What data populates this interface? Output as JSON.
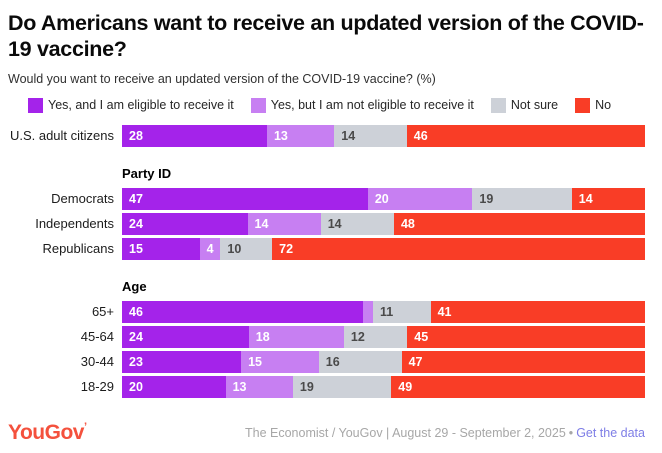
{
  "title": "Do Americans want to receive an updated version of the COVID-19 vaccine?",
  "subtitle": "Would you want to receive an updated version of the COVID-19 vaccine? (%)",
  "colors": {
    "yes_eligible": "#a423ea",
    "yes_not_eligible": "#c77ff2",
    "not_sure": "#cdd1d8",
    "no": "#f93d26",
    "label_on_light": "#4a4a4a",
    "label_on_dark": "#ffffff",
    "logo": "#f4513d",
    "link": "#7e7ee6",
    "footer_text": "#a7a7a7"
  },
  "legend": [
    "Yes, and I am eligible to receive it",
    "Yes, but I am not eligible to receive it",
    "Not sure",
    "No"
  ],
  "chart_data": {
    "type": "bar",
    "stacked": true,
    "orientation": "horizontal",
    "unit": "%",
    "xlim": [
      0,
      100
    ],
    "grid": false,
    "legend_position": "top",
    "series": [
      {
        "name": "Yes, and I am eligible to receive it",
        "color": "#a423ea",
        "label_color": "#ffffff"
      },
      {
        "name": "Yes, but I am not eligible to receive it",
        "color": "#c77ff2",
        "label_color": "#ffffff"
      },
      {
        "name": "Not sure",
        "color": "#cdd1d8",
        "label_color": "#4a4a4a"
      },
      {
        "name": "No",
        "color": "#f93d26",
        "label_color": "#ffffff"
      }
    ],
    "groups": [
      {
        "header": "",
        "rows": [
          {
            "label": "U.S. adult citizens",
            "values": [
              28,
              13,
              14,
              46
            ],
            "labels": [
              "28",
              "13",
              "14",
              "46"
            ]
          }
        ]
      },
      {
        "header": "Party ID",
        "rows": [
          {
            "label": "Democrats",
            "values": [
              47,
              20,
              19,
              14
            ],
            "labels": [
              "47",
              "20",
              "19",
              "14"
            ]
          },
          {
            "label": "Independents",
            "values": [
              24,
              14,
              14,
              48
            ],
            "labels": [
              "24",
              "14",
              "14",
              "48"
            ]
          },
          {
            "label": "Republicans",
            "values": [
              15,
              4,
              10,
              72
            ],
            "labels": [
              "15",
              "4",
              "10",
              "72"
            ]
          }
        ]
      },
      {
        "header": "Age",
        "rows": [
          {
            "label": "65+",
            "values": [
              46,
              2,
              11,
              41
            ],
            "labels": [
              "46",
              "",
              "11",
              "41"
            ]
          },
          {
            "label": "45-64",
            "values": [
              24,
              18,
              12,
              45
            ],
            "labels": [
              "24",
              "18",
              "12",
              "45"
            ]
          },
          {
            "label": "30-44",
            "values": [
              23,
              15,
              16,
              47
            ],
            "labels": [
              "23",
              "15",
              "16",
              "47"
            ]
          },
          {
            "label": "18-29",
            "values": [
              20,
              13,
              19,
              49
            ],
            "labels": [
              "20",
              "13",
              "19",
              "49"
            ]
          }
        ]
      }
    ]
  },
  "footer": {
    "logo_text": "YouGov",
    "logo_mark": "’",
    "source": "The Economist / YouGov | August 29 - September 2, 2025",
    "separator": "•",
    "link": "Get the data"
  }
}
